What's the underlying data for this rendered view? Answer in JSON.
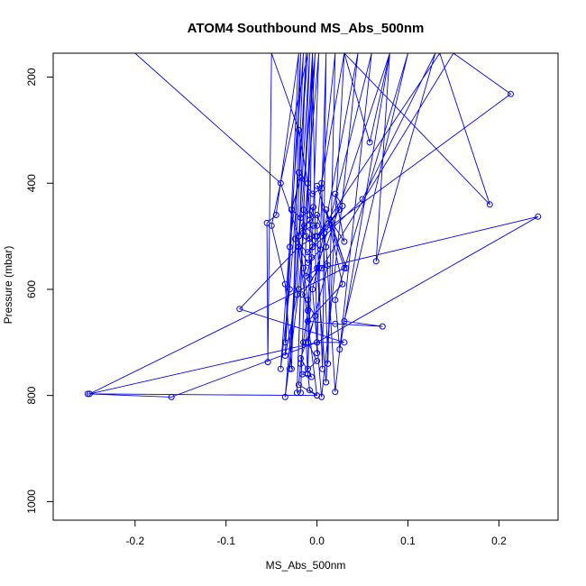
{
  "chart_data": {
    "type": "line",
    "title": "ATOM4 Southbound MS_Abs_500nm",
    "xlabel": "MS_Abs_500nm",
    "ylabel": "Pressure (mbar)",
    "xlim": [
      -0.29,
      0.265
    ],
    "ylim": [
      1035,
      155
    ],
    "y_reversed": true,
    "x_ticks": [
      -0.2,
      -0.1,
      0.0,
      0.1,
      0.2
    ],
    "x_tick_labels": [
      "-0.2",
      "-0.1",
      "0.0",
      "0.1",
      "0.2"
    ],
    "y_ticks": [
      200,
      400,
      600,
      800,
      1000
    ],
    "y_tick_labels": [
      "200",
      "400",
      "600",
      "800",
      "1000"
    ],
    "grid": false,
    "legend": "none",
    "series": [
      {
        "color": "#0000ff",
        "marker": "open-circle",
        "points": [
          [
            -0.2,
            155
          ],
          [
            -0.04,
            400
          ],
          [
            -0.02,
            500
          ],
          [
            -0.015,
            560
          ],
          [
            -0.01,
            620
          ],
          [
            -0.012,
            700
          ],
          [
            -0.01,
            760
          ],
          [
            -0.008,
            790
          ],
          [
            0.0,
            800
          ],
          [
            -0.02,
            780
          ],
          [
            -0.018,
            740
          ],
          [
            -0.015,
            700
          ],
          [
            -0.01,
            640
          ],
          [
            -0.008,
            580
          ],
          [
            -0.005,
            520
          ],
          [
            -0.008,
            460
          ],
          [
            -0.01,
            400
          ],
          [
            -0.02,
            300
          ],
          [
            -0.05,
            155
          ],
          [
            -0.054,
            737
          ],
          [
            -0.055,
            475
          ],
          [
            -0.045,
            460
          ],
          [
            -0.02,
            155
          ],
          [
            -0.035,
            700
          ],
          [
            -0.03,
            520
          ],
          [
            -0.02,
            380
          ],
          [
            -0.015,
            155
          ],
          [
            -0.04,
            750
          ],
          [
            -0.03,
            600
          ],
          [
            -0.01,
            155
          ],
          [
            -0.05,
            480
          ],
          [
            -0.035,
            590
          ],
          [
            -0.028,
            750
          ],
          [
            -0.018,
            155
          ],
          [
            -0.035,
            725
          ],
          [
            -0.022,
            610
          ],
          [
            -0.012,
            155
          ],
          [
            -0.03,
            750
          ],
          [
            -0.02,
            500
          ],
          [
            -0.008,
            155
          ],
          [
            -0.022,
            795
          ],
          [
            -0.015,
            450
          ],
          [
            -0.005,
            155
          ],
          [
            -0.018,
            795
          ],
          [
            -0.012,
            500
          ],
          [
            -0.002,
            155
          ],
          [
            -0.035,
            803
          ],
          [
            -0.02,
            600
          ],
          [
            0.002,
            155
          ],
          [
            -0.01,
            750
          ],
          [
            -0.005,
            155
          ],
          [
            0.0,
            720
          ],
          [
            0.01,
            155
          ],
          [
            0.006,
            750
          ],
          [
            0.0,
            480
          ],
          [
            0.02,
            155
          ],
          [
            0.012,
            740
          ],
          [
            0.005,
            400
          ],
          [
            0.03,
            155
          ],
          [
            0.01,
            775
          ],
          [
            0.0,
            560
          ],
          [
            0.045,
            155
          ],
          [
            0.005,
            803
          ],
          [
            -0.005,
            600
          ],
          [
            0.06,
            155
          ],
          [
            0.02,
            793
          ],
          [
            0.01,
            520
          ],
          [
            0.08,
            155
          ],
          [
            0.025,
            713
          ],
          [
            0.02,
            620
          ],
          [
            0.1,
            155
          ],
          [
            0.03,
            660
          ],
          [
            0.072,
            670
          ],
          [
            0.02,
            665
          ],
          [
            -0.01,
            660
          ],
          [
            0.028,
            590
          ],
          [
            0.01,
            450
          ],
          [
            0.032,
            560
          ],
          [
            0.015,
            470
          ],
          [
            0.03,
            510
          ],
          [
            0.02,
            420
          ],
          [
            0.028,
            443
          ],
          [
            0.0,
            500
          ],
          [
            0.025,
            450
          ],
          [
            -0.01,
            530
          ],
          [
            0.05,
            430
          ],
          [
            0.13,
            155
          ],
          [
            0.065,
            547
          ],
          [
            0.08,
            155
          ],
          [
            0.058,
            323
          ],
          [
            0.03,
            155
          ],
          [
            0.19,
            440
          ],
          [
            0.135,
            155
          ],
          [
            0.0,
            500
          ],
          [
            0.213,
            232
          ],
          [
            0.15,
            155
          ],
          [
            0.005,
            560
          ],
          [
            0.243,
            463
          ],
          [
            0.0,
            700
          ],
          [
            0.03,
            700
          ],
          [
            -0.085,
            637
          ],
          [
            -0.02,
            520
          ],
          [
            0.0,
            800
          ],
          [
            -0.252,
            797
          ],
          [
            -0.16,
            803
          ],
          [
            0.0,
            700
          ],
          [
            -0.25,
            797
          ],
          [
            0.03,
            560
          ],
          [
            0.0,
            405
          ],
          [
            0.005,
            410
          ],
          [
            -0.005,
            420
          ],
          [
            -0.018,
            390
          ],
          [
            -0.028,
            450
          ],
          [
            -0.018,
            465
          ],
          [
            -0.004,
            445
          ],
          [
            -0.008,
            470
          ],
          [
            -0.024,
            505
          ],
          [
            -0.006,
            540
          ],
          [
            -0.012,
            575
          ],
          [
            0.002,
            560
          ],
          [
            -0.016,
            610
          ],
          [
            -0.002,
            650
          ],
          [
            -0.018,
            730
          ],
          [
            -0.006,
            765
          ],
          [
            -0.016,
            760
          ],
          [
            0.0,
            735
          ],
          [
            -0.01,
            700
          ],
          [
            0.012,
            555
          ],
          [
            0.008,
            495
          ],
          [
            0.0,
            460
          ],
          [
            -0.014,
            480
          ],
          [
            -0.002,
            500
          ],
          [
            -0.02,
            520
          ],
          [
            -0.01,
            550
          ],
          [
            0.004,
            525
          ],
          [
            -0.008,
            505
          ],
          [
            -0.016,
            490
          ],
          [
            -0.004,
            480
          ]
        ]
      }
    ]
  }
}
